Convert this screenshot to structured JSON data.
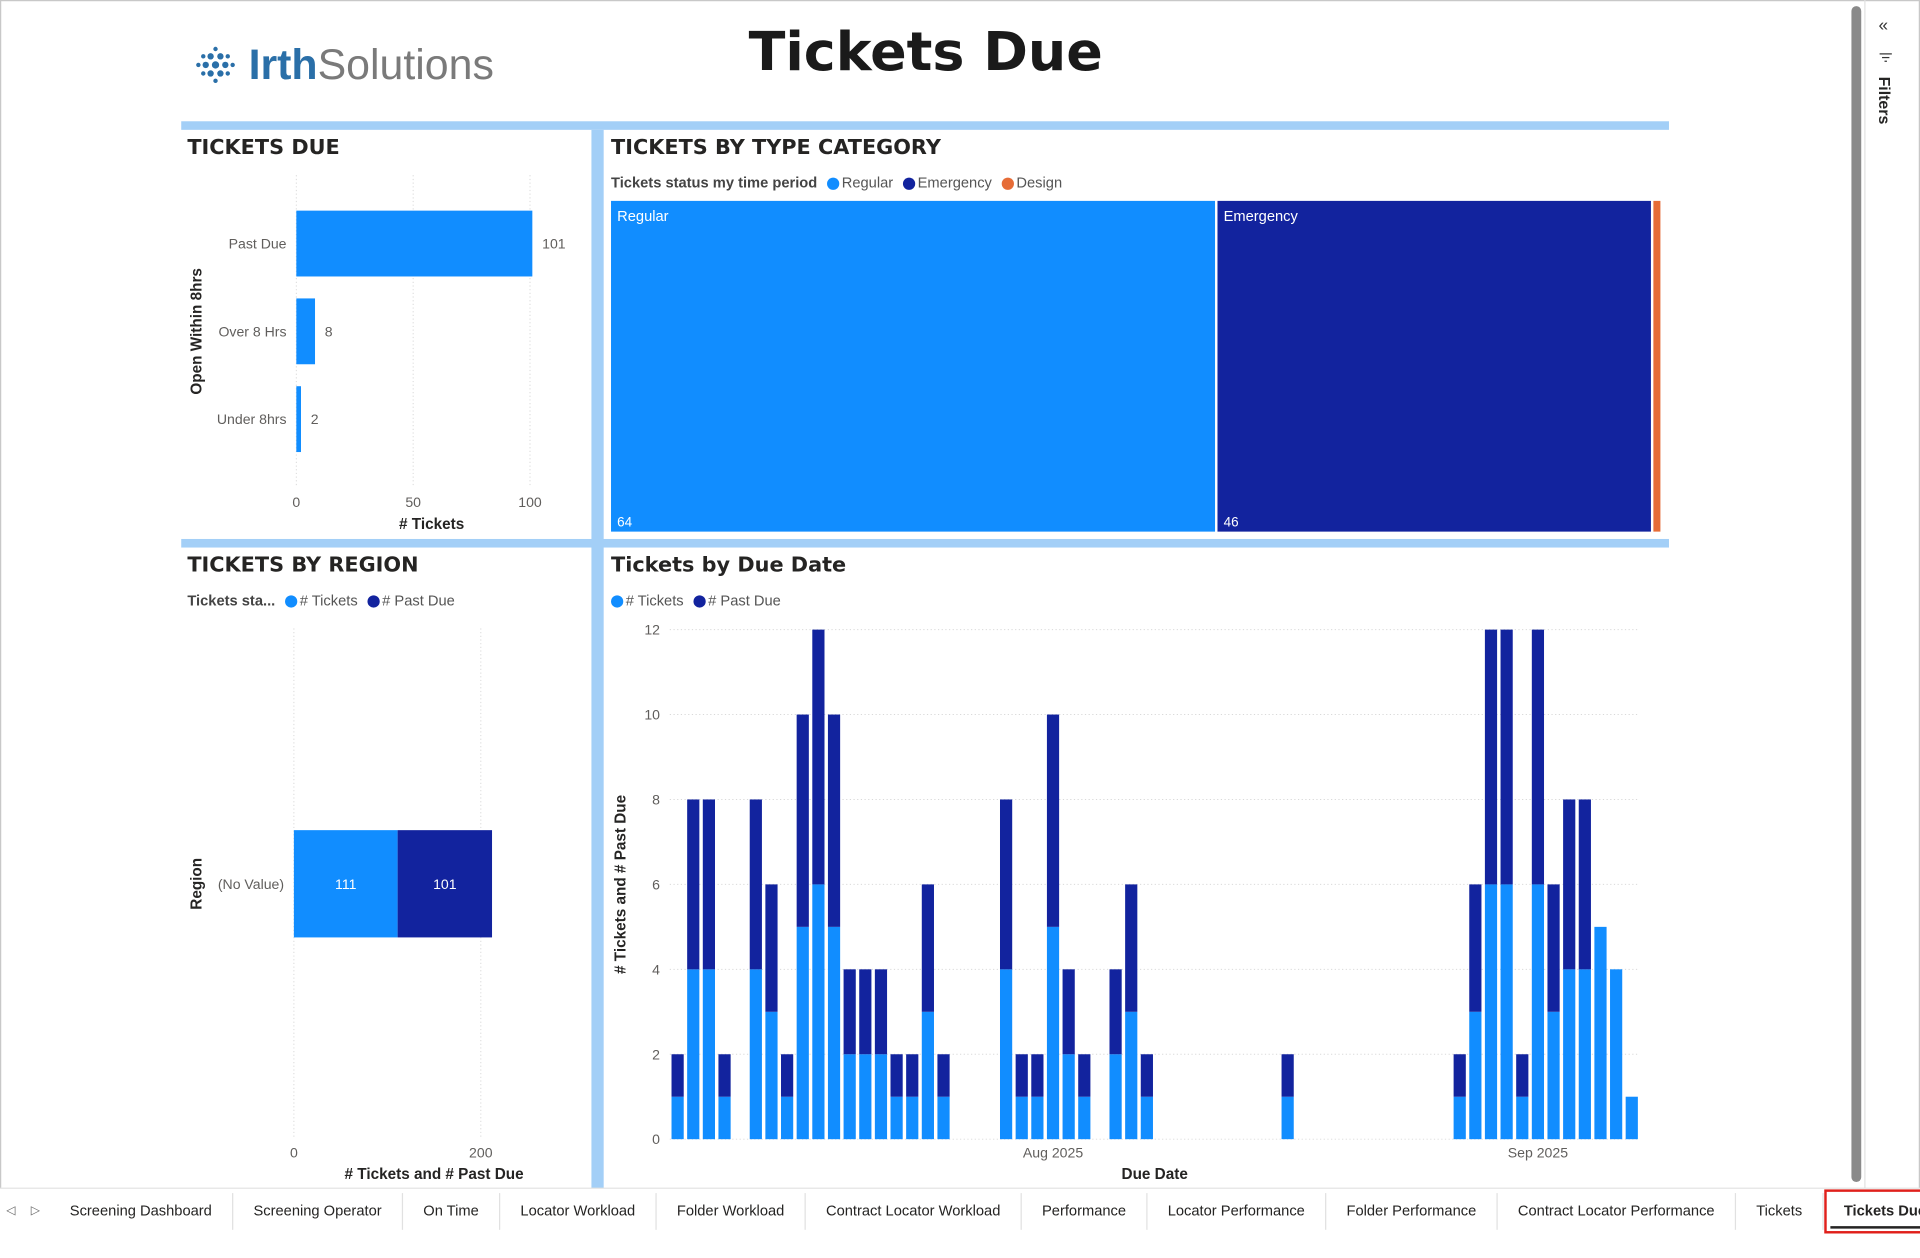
{
  "header": {
    "logo": [
      "Irth",
      "Solutions"
    ],
    "title": "Tickets Due"
  },
  "filters_pane": {
    "label": "Filters"
  },
  "chart_data": [
    {
      "type": "hbar",
      "title": "TICKETS DUE",
      "y_label": "Open Within 8hrs",
      "x_label": "# Tickets",
      "categories": [
        "Past Due",
        "Over 8 Hrs",
        "Under 8hrs"
      ],
      "values": [
        101,
        8,
        2
      ],
      "color": "#118DFF",
      "xlim": [
        0,
        120
      ],
      "xticks": [
        0,
        50,
        100
      ],
      "grid": true
    },
    {
      "type": "treemap",
      "title": "TICKETS BY TYPE CATEGORY",
      "legend_title": "Tickets status my time period",
      "categories": [
        "Regular",
        "Emergency",
        "Design"
      ],
      "values": [
        64,
        46,
        1
      ],
      "colors": [
        "#118DFF",
        "#12239E",
        "#E66C37"
      ]
    },
    {
      "type": "stacked_hbar",
      "title": "TICKETS BY REGION",
      "legend_title": "Tickets sta...",
      "y_label": "Region",
      "x_label": "# Tickets and # Past Due",
      "categories": [
        "(No Value)"
      ],
      "series": [
        {
          "name": "# Tickets",
          "color": "#118DFF",
          "values": [
            111
          ]
        },
        {
          "name": "# Past Due",
          "color": "#12239E",
          "values": [
            101
          ]
        }
      ],
      "xlim": [
        0,
        300
      ],
      "xticks": [
        0,
        200
      ],
      "grid": true
    },
    {
      "type": "stacked_column",
      "title": "Tickets by Due Date",
      "x_label": "Due Date",
      "y_label": "# Tickets and # Past Due",
      "categories": [
        null,
        null,
        null,
        null,
        null,
        null,
        null,
        null,
        null,
        null,
        null,
        null,
        null,
        null,
        null,
        null,
        null,
        null,
        null,
        null,
        null,
        null,
        null,
        null,
        "Aug 2025",
        null,
        null,
        null,
        null,
        null,
        null,
        null,
        null,
        null,
        null,
        null,
        null,
        null,
        null,
        null,
        null,
        null,
        null,
        null,
        null,
        null,
        null,
        null,
        null,
        null,
        null,
        null,
        null,
        null,
        null,
        "Sep 2025",
        null,
        null,
        null,
        null,
        null,
        null
      ],
      "series": [
        {
          "name": "# Tickets",
          "color": "#118DFF",
          "values": [
            1,
            4,
            4,
            1,
            null,
            4,
            3,
            1,
            5,
            6,
            5,
            2,
            2,
            2,
            1,
            1,
            3,
            1,
            null,
            null,
            null,
            4,
            1,
            1,
            5,
            2,
            1,
            null,
            2,
            3,
            1,
            null,
            null,
            null,
            null,
            null,
            null,
            null,
            null,
            1,
            null,
            null,
            null,
            null,
            null,
            null,
            null,
            null,
            null,
            null,
            1,
            3,
            6,
            6,
            1,
            6,
            3,
            4,
            4,
            5,
            4,
            1
          ]
        },
        {
          "name": "# Past Due",
          "color": "#12239E",
          "values": [
            1,
            4,
            4,
            1,
            null,
            4,
            3,
            1,
            5,
            6,
            5,
            2,
            2,
            2,
            1,
            1,
            3,
            1,
            null,
            null,
            null,
            4,
            1,
            1,
            5,
            2,
            1,
            null,
            2,
            3,
            1,
            null,
            null,
            null,
            null,
            null,
            null,
            null,
            null,
            1,
            null,
            null,
            null,
            null,
            null,
            null,
            null,
            null,
            null,
            null,
            1,
            3,
            6,
            6,
            1,
            6,
            3,
            4,
            4,
            0,
            0,
            0
          ]
        }
      ],
      "ylim": [
        0,
        12
      ],
      "yticks": [
        0,
        2,
        4,
        6,
        8,
        10,
        12
      ],
      "grid": true
    }
  ],
  "tabs": {
    "items": [
      "Screening Dashboard",
      "Screening Operator",
      "On Time",
      "Locator Workload",
      "Folder Workload",
      "Contract Locator Workload",
      "Performance",
      "Locator Performance",
      "Folder Performance",
      "Contract Locator Performance",
      "Tickets",
      "Tickets Due"
    ],
    "selected": 11
  }
}
